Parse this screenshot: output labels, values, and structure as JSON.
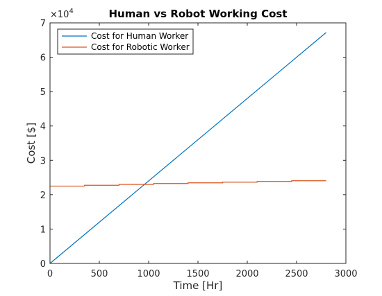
{
  "chart_data": {
    "type": "line",
    "title": "Human vs Robot Working Cost",
    "xlabel": "Time [Hr]",
    "ylabel": "Cost [$]",
    "xlim": [
      0,
      3000
    ],
    "ylim": [
      0,
      70000
    ],
    "x_ticks": [
      0,
      500,
      1000,
      1500,
      2000,
      2500,
      3000
    ],
    "x_tick_labels": [
      "0",
      "500",
      "1000",
      "1500",
      "2000",
      "2500",
      "3000"
    ],
    "y_ticks": [
      0,
      10000,
      20000,
      30000,
      40000,
      50000,
      60000,
      70000
    ],
    "y_tick_labels": [
      "0",
      "1",
      "2",
      "3",
      "4",
      "5",
      "6",
      "7"
    ],
    "y_exponent_label": "×10",
    "y_exponent_power": "4",
    "grid": false,
    "legend_position": "top-left",
    "series": [
      {
        "name": "Cost for Human Worker",
        "color": "#0072bd",
        "x": [
          0,
          2800
        ],
        "y": [
          0,
          67200
        ]
      },
      {
        "name": "Cost for Robotic Worker",
        "color": "#d95319",
        "x": [
          0,
          350,
          350,
          700,
          700,
          1050,
          1050,
          1400,
          1400,
          1750,
          1750,
          2100,
          2100,
          2450,
          2450,
          2800
        ],
        "y": [
          22500,
          22500,
          22750,
          22750,
          23000,
          23000,
          23250,
          23250,
          23450,
          23450,
          23650,
          23650,
          23850,
          23850,
          24050,
          24050
        ]
      }
    ]
  }
}
